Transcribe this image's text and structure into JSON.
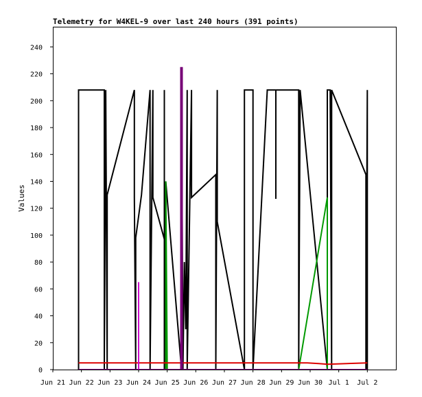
{
  "chart_data": {
    "type": "line",
    "title": "Telemetry for W4KEL-9 over last 240 hours (391 points)",
    "xlabel": "",
    "ylabel": "Values",
    "ylim": [
      0,
      255
    ],
    "xlim": [
      21,
      33
    ],
    "y_ticks": [
      0,
      20,
      40,
      60,
      80,
      100,
      120,
      140,
      160,
      180,
      200,
      220,
      240
    ],
    "x_tick_values": [
      21,
      22,
      23,
      24,
      25,
      26,
      27,
      28,
      29,
      30,
      31,
      32
    ],
    "x_tick_labels": [
      "Jun 21",
      "Jun 22",
      "Jun 23",
      "Jun 24",
      "Jun 25",
      "Jun 26",
      "Jun 27",
      "Jun 28",
      "Jun 29",
      "Jun 30",
      "Jul 1",
      "Jul 2"
    ],
    "grid": false,
    "series": [
      {
        "color": "#000000",
        "width": 2,
        "points": [
          [
            21.9,
            0
          ],
          [
            21.9,
            208
          ],
          [
            22.8,
            208
          ],
          [
            22.8,
            0
          ],
          [
            22.85,
            208
          ],
          [
            22.9,
            0
          ],
          [
            22.9,
            130
          ],
          [
            23.85,
            208
          ],
          [
            23.85,
            128
          ],
          [
            23.9,
            0
          ],
          [
            23.9,
            98
          ],
          [
            24.1,
            130
          ],
          [
            24.4,
            208
          ],
          [
            24.4,
            0
          ],
          [
            24.5,
            208
          ],
          [
            24.5,
            128
          ],
          [
            24.9,
            97
          ],
          [
            24.9,
            208
          ],
          [
            24.9,
            0
          ],
          [
            24.95,
            140
          ],
          [
            25.5,
            0
          ],
          [
            25.5,
            220
          ],
          [
            25.55,
            0
          ],
          [
            25.6,
            80
          ],
          [
            25.65,
            30
          ],
          [
            25.7,
            208
          ],
          [
            25.7,
            0
          ],
          [
            25.85,
            208
          ],
          [
            25.85,
            128
          ],
          [
            26.7,
            145
          ],
          [
            26.7,
            0
          ],
          [
            26.75,
            208
          ],
          [
            26.75,
            110
          ],
          [
            27.7,
            0
          ],
          [
            27.7,
            208
          ],
          [
            28.0,
            208
          ],
          [
            28.0,
            0
          ],
          [
            28.5,
            208
          ],
          [
            28.8,
            208
          ],
          [
            28.8,
            127
          ],
          [
            28.8,
            208
          ],
          [
            29.6,
            208
          ],
          [
            29.6,
            0
          ],
          [
            29.65,
            208
          ],
          [
            30.6,
            0
          ],
          [
            30.6,
            208
          ],
          [
            30.7,
            208
          ],
          [
            30.75,
            0
          ],
          [
            30.75,
            208
          ],
          [
            31.95,
            145
          ],
          [
            31.95,
            0
          ],
          [
            32.0,
            208
          ],
          [
            32.0,
            0
          ]
        ]
      },
      {
        "color": "#009900",
        "width": 2,
        "points": [
          [
            24.95,
            0
          ],
          [
            24.95,
            140
          ],
          [
            25.0,
            0
          ],
          [
            29.6,
            0
          ],
          [
            30.6,
            128
          ],
          [
            30.6,
            0
          ]
        ]
      },
      {
        "color": "#dd0000",
        "width": 2,
        "points": [
          [
            21.9,
            5
          ],
          [
            29.9,
            5
          ],
          [
            30.3,
            4.5
          ],
          [
            30.6,
            4
          ],
          [
            32.0,
            5
          ]
        ]
      },
      {
        "color": "#880088",
        "width": 2,
        "points": [
          [
            21.9,
            0
          ],
          [
            32.0,
            0
          ]
        ]
      },
      {
        "color": "#770077",
        "width": 4,
        "points": [
          [
            25.5,
            0
          ],
          [
            25.5,
            225
          ]
        ]
      },
      {
        "color": "#cc00cc",
        "width": 2,
        "points": [
          [
            24.0,
            0
          ],
          [
            24.0,
            65
          ]
        ]
      }
    ]
  }
}
